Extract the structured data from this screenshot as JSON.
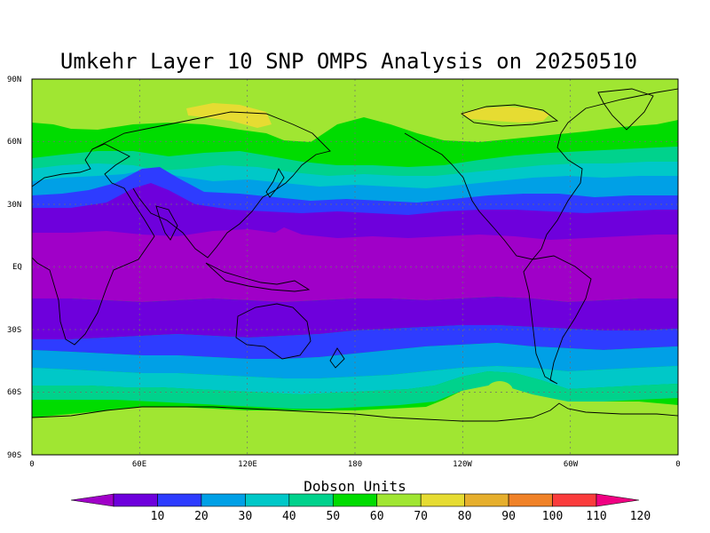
{
  "title": "Umkehr Layer 10 SNP OMPS Analysis on 20250510",
  "map": {
    "projection": "latlon",
    "lon_range": [
      0,
      360
    ],
    "lat_range": [
      -90,
      90
    ],
    "lat_ticks": [
      "90N",
      "60N",
      "30N",
      "EQ",
      "30S",
      "60S",
      "90S"
    ],
    "lon_ticks": [
      "0",
      "60E",
      "120E",
      "180",
      "120W",
      "60W",
      "0"
    ],
    "grid": true,
    "coastlines": true
  },
  "colorbar": {
    "title": "Dobson Units",
    "labels": [
      "10",
      "20",
      "30",
      "40",
      "50",
      "60",
      "70",
      "80",
      "90",
      "100",
      "110",
      "120"
    ],
    "colors": [
      "#a000c8",
      "#6e00dc",
      "#2e3cff",
      "#00a0e6",
      "#00c8c8",
      "#00d28c",
      "#00dc00",
      "#a0e632",
      "#e6dc32",
      "#e6af2d",
      "#f08228",
      "#fa3c3c",
      "#f00082"
    ],
    "orientation": "horizontal"
  }
}
